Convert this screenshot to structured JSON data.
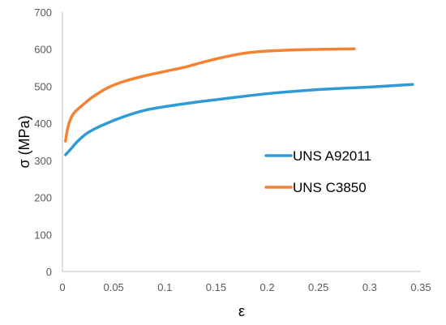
{
  "chart_data": {
    "type": "line",
    "title": "",
    "xlabel": "ε",
    "ylabel": "σ (MPa)",
    "xlim": [
      0,
      0.35
    ],
    "ylim": [
      0,
      700
    ],
    "x_ticks": [
      0,
      0.05,
      0.1,
      0.15,
      0.2,
      0.25,
      0.3,
      0.35
    ],
    "x_tick_labels": [
      "0",
      "0.05",
      "0.1",
      "0.15",
      "0.2",
      "0.25",
      "0.3",
      "0.35"
    ],
    "y_ticks": [
      0,
      100,
      200,
      300,
      400,
      500,
      600,
      700
    ],
    "y_tick_labels": [
      "0",
      "100",
      "200",
      "300",
      "400",
      "500",
      "600",
      "700"
    ],
    "grid": false,
    "legend_position": "center-right",
    "series": [
      {
        "name": "UNS A92011",
        "color": "#2E9BD6",
        "points": [
          [
            0.003,
            315
          ],
          [
            0.008,
            330
          ],
          [
            0.015,
            352
          ],
          [
            0.025,
            375
          ],
          [
            0.04,
            396
          ],
          [
            0.06,
            418
          ],
          [
            0.08,
            435
          ],
          [
            0.1,
            445
          ],
          [
            0.13,
            457
          ],
          [
            0.16,
            467
          ],
          [
            0.2,
            480
          ],
          [
            0.25,
            491
          ],
          [
            0.3,
            498
          ],
          [
            0.342,
            505
          ]
        ]
      },
      {
        "name": "UNS C3850",
        "color": "#F58233",
        "points": [
          [
            0.003,
            352
          ],
          [
            0.005,
            385
          ],
          [
            0.008,
            412
          ],
          [
            0.012,
            430
          ],
          [
            0.02,
            450
          ],
          [
            0.03,
            472
          ],
          [
            0.045,
            497
          ],
          [
            0.06,
            513
          ],
          [
            0.08,
            528
          ],
          [
            0.1,
            540
          ],
          [
            0.12,
            552
          ],
          [
            0.14,
            567
          ],
          [
            0.16,
            580
          ],
          [
            0.18,
            590
          ],
          [
            0.2,
            595
          ],
          [
            0.24,
            599
          ],
          [
            0.285,
            601
          ]
        ]
      }
    ]
  }
}
